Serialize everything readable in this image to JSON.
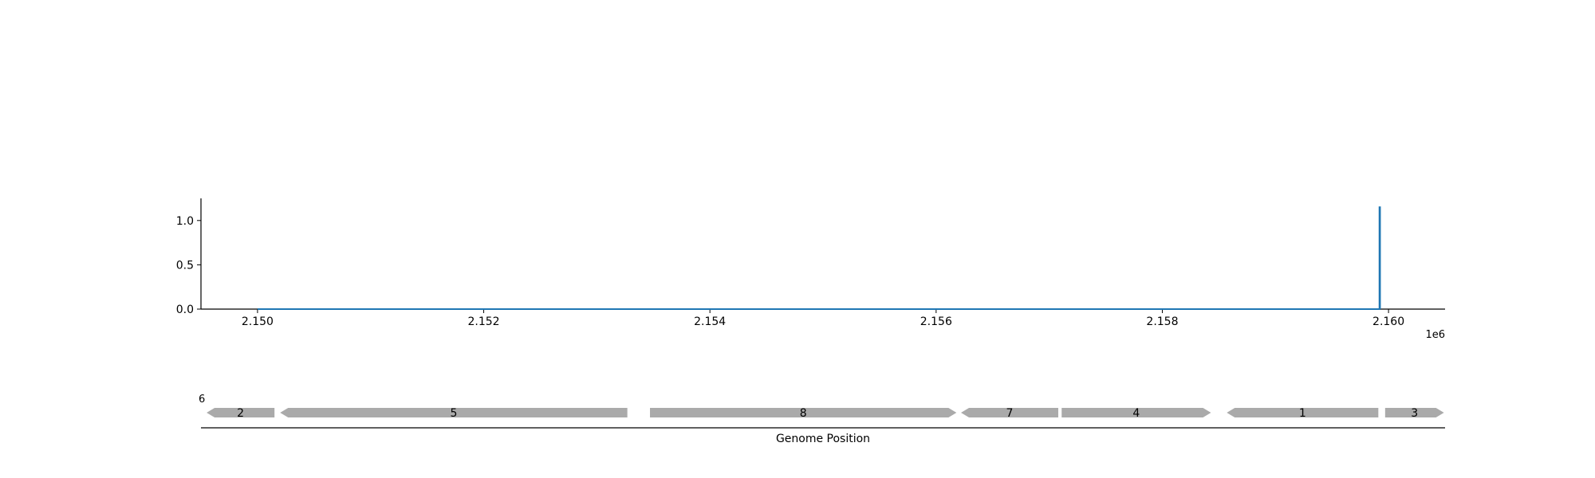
{
  "chart_data": [
    {
      "type": "line",
      "title": "",
      "xlabel": "",
      "ylabel": "",
      "x_offset_label": "1e6",
      "xlim": [
        2149500,
        2160500
      ],
      "ylim": [
        0,
        1.25
      ],
      "x_ticks": [
        2150000,
        2152000,
        2154000,
        2156000,
        2158000,
        2160000
      ],
      "x_tick_labels": [
        "2.150",
        "2.152",
        "2.154",
        "2.156",
        "2.158",
        "2.160"
      ],
      "y_ticks": [
        0.0,
        0.5,
        1.0
      ],
      "y_tick_labels": [
        "0.0",
        "0.5",
        "1.0"
      ],
      "grid": false,
      "series": [
        {
          "color": "#1f77b4",
          "x": [
            2150000,
            2159920,
            2159920,
            2159925,
            2159925
          ],
          "y": [
            0,
            0,
            1.15,
            1.15,
            0
          ]
        }
      ]
    },
    {
      "type": "gene_track",
      "xlabel": "Genome Position",
      "xlim": [
        2149500,
        2160500
      ],
      "feature_color": "#aaaaaa",
      "features": [
        {
          "label": "2",
          "start": 2149550,
          "end": 2150150,
          "strand": -1
        },
        {
          "label": "5",
          "start": 2150200,
          "end": 2153270,
          "strand": -1
        },
        {
          "label": "8",
          "start": 2153470,
          "end": 2156180,
          "strand": 1
        },
        {
          "label": "7",
          "start": 2156220,
          "end": 2157080,
          "strand": -1
        },
        {
          "label": "4",
          "start": 2157110,
          "end": 2158430,
          "strand": 1
        },
        {
          "label": "1",
          "start": 2158570,
          "end": 2159910,
          "strand": -1
        },
        {
          "label": "3",
          "start": 2159970,
          "end": 2160490,
          "strand": 1
        }
      ],
      "stray_label": "6"
    }
  ]
}
